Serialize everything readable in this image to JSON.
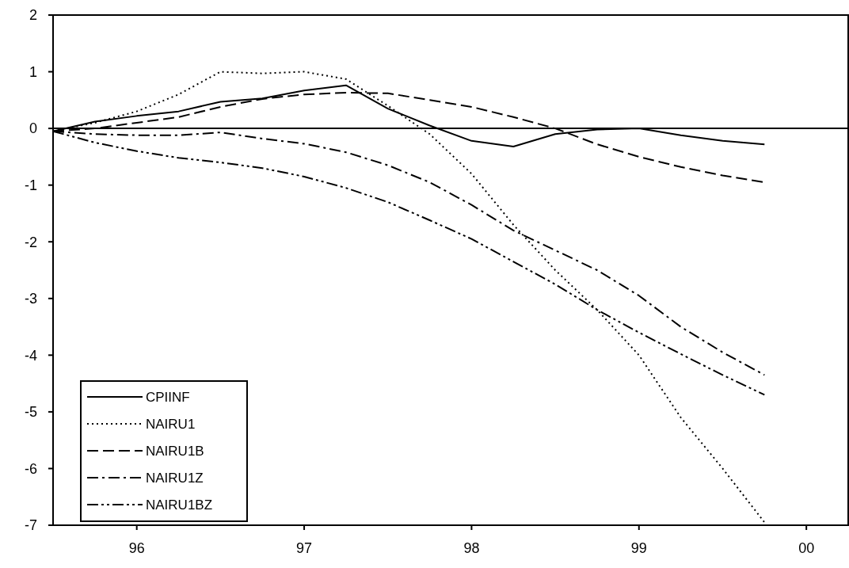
{
  "chart_data": {
    "type": "line",
    "x": [
      1995.5,
      1995.75,
      1996,
      1996.25,
      1996.5,
      1996.75,
      1997,
      1997.25,
      1997.5,
      1997.75,
      1998,
      1998.25,
      1998.5,
      1998.75,
      1999,
      1999.25,
      1999.5,
      1999.75
    ],
    "series": [
      {
        "name": "CPIINF",
        "color": "#000000",
        "line_style": "solid",
        "values": [
          -0.05,
          0.12,
          0.22,
          0.3,
          0.47,
          0.53,
          0.67,
          0.76,
          0.35,
          0.05,
          -0.22,
          -0.32,
          -0.1,
          -0.02,
          0,
          -0.12,
          -0.22,
          -0.28
        ]
      },
      {
        "name": "NAIRU1",
        "color": "#000000",
        "line_style": "dotted",
        "values": [
          -0.05,
          0.1,
          0.3,
          0.6,
          1.0,
          0.97,
          1.0,
          0.87,
          0.4,
          -0.1,
          -0.8,
          -1.7,
          -2.5,
          -3.2,
          -4.0,
          -5.1,
          -6.0,
          -6.95
        ]
      },
      {
        "name": "NAIRU1B",
        "color": "#000000",
        "line_style": "dashed",
        "values": [
          -0.05,
          0.0,
          0.1,
          0.2,
          0.38,
          0.52,
          0.6,
          0.63,
          0.62,
          0.5,
          0.38,
          0.2,
          0.0,
          -0.28,
          -0.5,
          -0.68,
          -0.83,
          -0.95
        ]
      },
      {
        "name": "NAIRU1Z",
        "color": "#000000",
        "line_style": "dashdot",
        "values": [
          -0.05,
          -0.1,
          -0.12,
          -0.12,
          -0.07,
          -0.18,
          -0.27,
          -0.42,
          -0.65,
          -0.95,
          -1.35,
          -1.8,
          -2.15,
          -2.5,
          -2.95,
          -3.5,
          -3.95,
          -4.35
        ]
      },
      {
        "name": "NAIRU1BZ",
        "color": "#000000",
        "line_style": "dashdotdot",
        "values": [
          -0.05,
          -0.25,
          -0.4,
          -0.52,
          -0.6,
          -0.7,
          -0.85,
          -1.05,
          -1.3,
          -1.62,
          -1.95,
          -2.35,
          -2.75,
          -3.2,
          -3.6,
          -3.98,
          -4.35,
          -4.7
        ]
      }
    ],
    "xlim": [
      1995.5,
      2000.25
    ],
    "xticks": [
      {
        "value": 1996,
        "label": "96"
      },
      {
        "value": 1997,
        "label": "97"
      },
      {
        "value": 1998,
        "label": "98"
      },
      {
        "value": 1999,
        "label": "99"
      },
      {
        "value": 2000,
        "label": "00"
      }
    ],
    "ylim": [
      -7,
      2
    ],
    "yticks": [
      -7,
      -6,
      -5,
      -4,
      -3,
      -2,
      -1,
      0,
      1,
      2
    ],
    "ref_lines": [
      {
        "axis": "y",
        "value": 0,
        "color": "#000000",
        "line_style": "solid"
      }
    ],
    "grid": false,
    "legend": "bottom left",
    "marker": "none"
  }
}
